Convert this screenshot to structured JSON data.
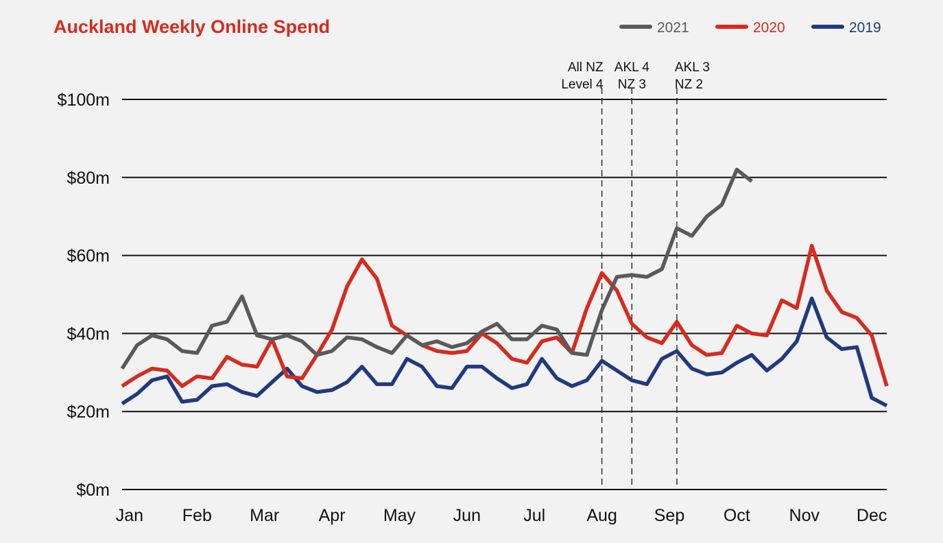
{
  "chart_data": {
    "type": "line",
    "title": "Auckland Weekly Online Spend",
    "xlabel": "",
    "ylabel": "",
    "ylim": [
      0,
      100
    ],
    "yticks": [
      0,
      20,
      40,
      60,
      80,
      100
    ],
    "ytick_labels": [
      "$0m",
      "$20m",
      "$40m",
      "$60m",
      "$80m",
      "$100m"
    ],
    "x_labels": [
      "Jan",
      "Feb",
      "Mar",
      "Apr",
      "May",
      "Jun",
      "Jul",
      "Aug",
      "Sep",
      "Oct",
      "Nov",
      "Dec"
    ],
    "x_unit": "week",
    "x_range": [
      1,
      52
    ],
    "month_label_weeks": [
      1.5,
      6,
      10.5,
      15,
      19.5,
      24,
      28.5,
      33,
      37.5,
      42,
      46.5,
      51
    ],
    "grid": true,
    "legend_position": "top-right",
    "series": [
      {
        "name": "2021",
        "color": "#5a5a5a",
        "values": [
          31,
          37,
          39.5,
          38.5,
          35.5,
          35,
          42,
          43,
          49.5,
          39.5,
          38.5,
          39.5,
          38,
          34.5,
          35.5,
          39,
          38.5,
          36.5,
          35,
          39.5,
          37,
          38,
          36.5,
          37.5,
          40.5,
          42.5,
          38.5,
          38.5,
          42,
          41,
          35,
          34.5,
          46,
          54.5,
          55,
          54.5,
          56.5,
          67,
          65,
          70,
          73,
          82,
          79
        ]
      },
      {
        "name": "2020",
        "color": "#d62b1f",
        "values": [
          26.5,
          29,
          31,
          30.5,
          26.5,
          29,
          28.5,
          34,
          32,
          31.5,
          38.5,
          29,
          28.5,
          34.5,
          41,
          52,
          59,
          54,
          42,
          39.5,
          37,
          35.5,
          35,
          35.5,
          40,
          37.5,
          33.5,
          32.5,
          38,
          39,
          35,
          46.5,
          55.5,
          51,
          42.5,
          39,
          37.5,
          43,
          37,
          34.5,
          35,
          42,
          40,
          39.5,
          48.5,
          46.5,
          62.5,
          51,
          45.5,
          44,
          39.5,
          26.5
        ]
      },
      {
        "name": "2019",
        "color": "#213a7e",
        "values": [
          22,
          24.5,
          28,
          29,
          22.5,
          23,
          26.5,
          27,
          25,
          24,
          27.5,
          31,
          26.5,
          25,
          25.5,
          27.5,
          31.5,
          27,
          27,
          33.5,
          31.5,
          26.5,
          26,
          31.5,
          31.5,
          28.5,
          26,
          27,
          33.5,
          28.5,
          26.5,
          28,
          33,
          30.5,
          28,
          27,
          33.5,
          35.5,
          31,
          29.5,
          30,
          32.5,
          34.5,
          30.5,
          33.5,
          38,
          49,
          39,
          36,
          36.5,
          23.5,
          21.5
        ]
      }
    ],
    "annotations": [
      {
        "week": 33,
        "line1": "All NZ",
        "line2": "Level 4"
      },
      {
        "week": 35,
        "line1": "AKL 4",
        "line2": "NZ 3"
      },
      {
        "week": 38,
        "line1": "AKL 3",
        "line2": "NZ 2"
      }
    ],
    "title_color": "#d62b1f"
  }
}
